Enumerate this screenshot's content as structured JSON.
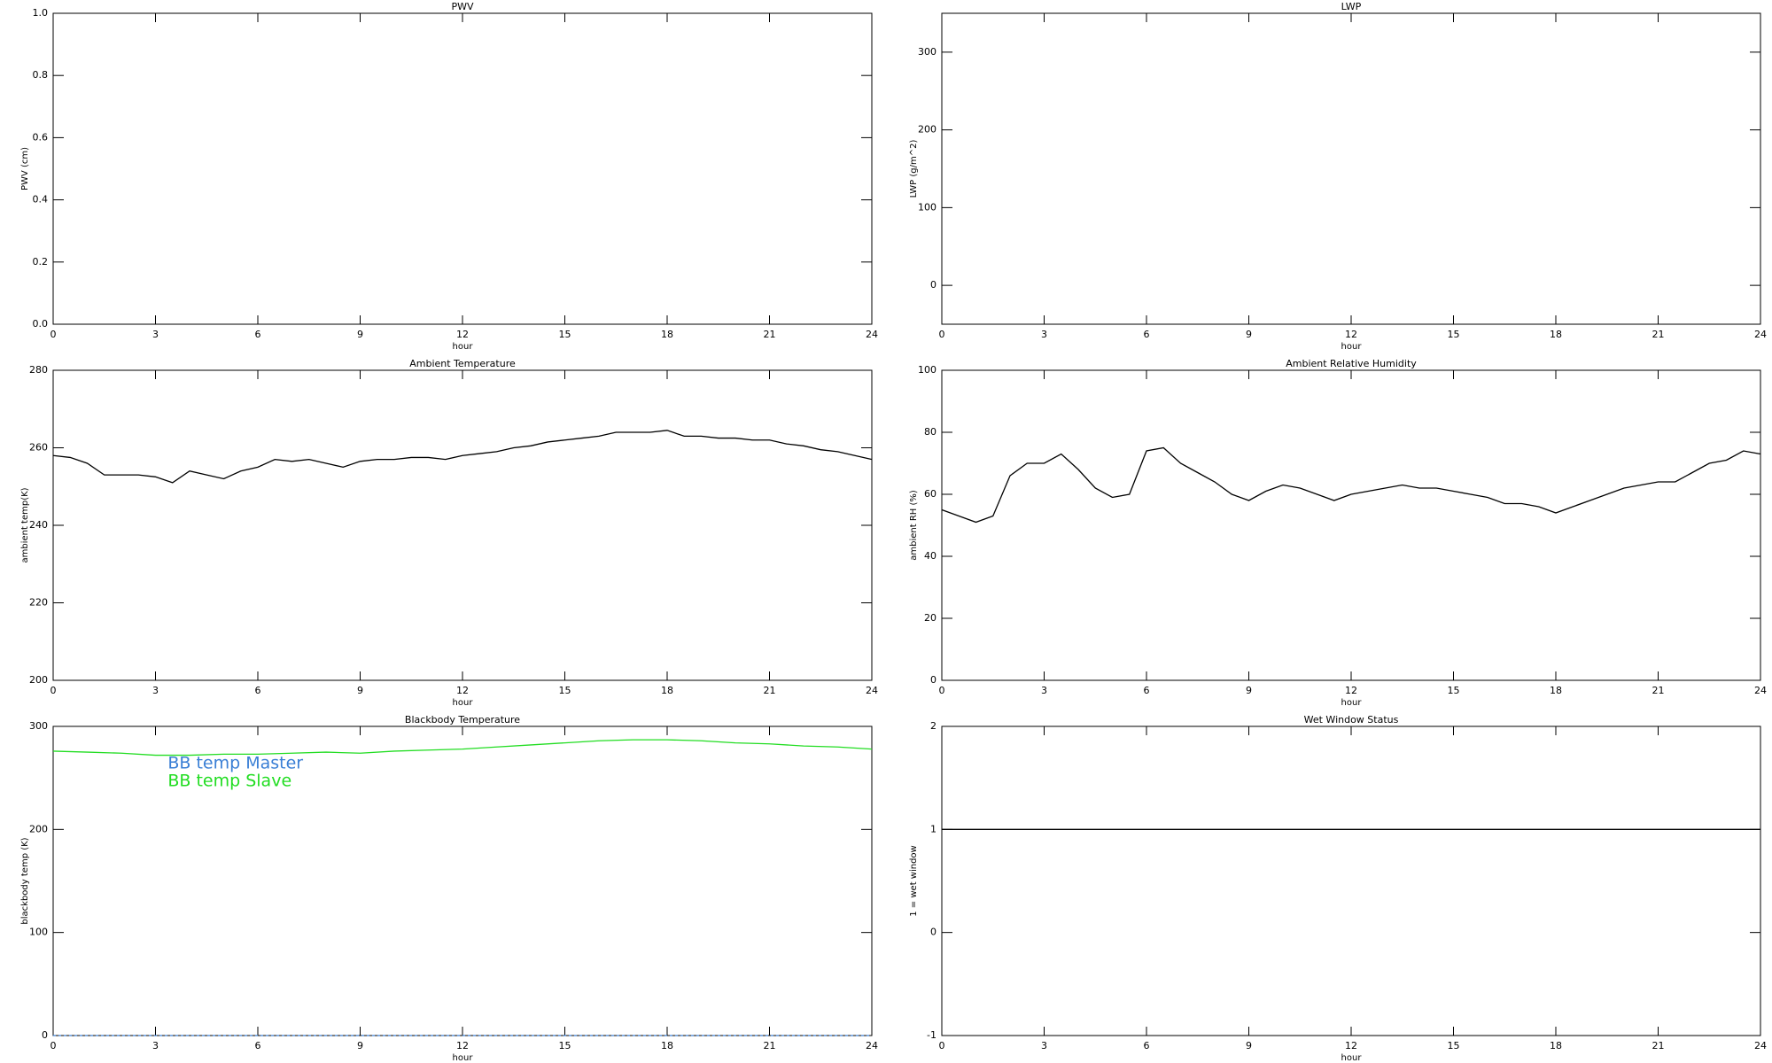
{
  "chart_data": [
    {
      "type": "line",
      "title": "PWV",
      "xlabel": "hour",
      "ylabel": "PWV (cm)",
      "xlim": [
        0,
        24
      ],
      "xticks": [
        0,
        3,
        6,
        9,
        12,
        15,
        18,
        21,
        24
      ],
      "ylim": [
        0,
        1
      ],
      "yticks": [
        {
          "value": 0,
          "label": "0.0"
        },
        0.2,
        0.4,
        0.6,
        0.8,
        {
          "value": 1,
          "label": "1.0"
        }
      ],
      "x": [],
      "series": []
    },
    {
      "type": "line",
      "title": "LWP",
      "xlabel": "hour",
      "ylabel": "LWP (g/m^2)",
      "xlim": [
        0,
        24
      ],
      "xticks": [
        0,
        3,
        6,
        9,
        12,
        15,
        18,
        21,
        24
      ],
      "ylim": [
        -50,
        350
      ],
      "yticks": [
        0,
        100,
        200,
        300
      ],
      "x": [],
      "series": []
    },
    {
      "type": "line",
      "title": "Ambient Temperature",
      "xlabel": "hour",
      "ylabel": "ambient temp(K)",
      "xlim": [
        0,
        24
      ],
      "xticks": [
        0,
        3,
        6,
        9,
        12,
        15,
        18,
        21,
        24
      ],
      "ylim": [
        200,
        280
      ],
      "yticks": [
        200,
        220,
        240,
        260,
        280
      ],
      "x": [
        0,
        0.5,
        1,
        1.5,
        2,
        2.5,
        3,
        3.5,
        4,
        4.5,
        5,
        5.5,
        6,
        6.5,
        7,
        7.5,
        8,
        8.5,
        9,
        9.5,
        10,
        10.5,
        11,
        11.5,
        12,
        12.5,
        13,
        13.5,
        14,
        14.5,
        15,
        15.5,
        16,
        16.5,
        17,
        17.5,
        18,
        18.5,
        19,
        19.5,
        20,
        20.5,
        21,
        21.5,
        22,
        22.5,
        23,
        23.5,
        24
      ],
      "series": [
        {
          "color": "#000000",
          "values": [
            258,
            257.5,
            256,
            253,
            253,
            253,
            252.5,
            251,
            254,
            253,
            252,
            254,
            255,
            257,
            256.5,
            257,
            256,
            255,
            256.5,
            257,
            257,
            257.5,
            257.5,
            257,
            258,
            258.5,
            259,
            260,
            260.5,
            261.5,
            262,
            262.5,
            263,
            264,
            264,
            264,
            264.5,
            263,
            263,
            262.5,
            262.5,
            262,
            262,
            261,
            260.5,
            259.5,
            259,
            258,
            257
          ]
        }
      ]
    },
    {
      "type": "line",
      "title": "Ambient Relative Humidity",
      "xlabel": "hour",
      "ylabel": "ambient RH (%)",
      "xlim": [
        0,
        24
      ],
      "xticks": [
        0,
        3,
        6,
        9,
        12,
        15,
        18,
        21,
        24
      ],
      "ylim": [
        0,
        100
      ],
      "yticks": [
        0,
        20,
        40,
        60,
        80,
        100
      ],
      "x": [
        0,
        0.5,
        1,
        1.5,
        2,
        2.5,
        3,
        3.5,
        4,
        4.5,
        5,
        5.5,
        6,
        6.5,
        7,
        7.5,
        8,
        8.5,
        9,
        9.5,
        10,
        10.5,
        11,
        11.5,
        12,
        12.5,
        13,
        13.5,
        14,
        14.5,
        15,
        15.5,
        16,
        16.5,
        17,
        17.5,
        18,
        18.5,
        19,
        19.5,
        20,
        20.5,
        21,
        21.5,
        22,
        22.5,
        23,
        23.5,
        24
      ],
      "series": [
        {
          "color": "#000000",
          "values": [
            55,
            53,
            51,
            53,
            66,
            70,
            70,
            73,
            68,
            62,
            59,
            60,
            74,
            75,
            70,
            67,
            64,
            60,
            58,
            61,
            63,
            62,
            60,
            58,
            60,
            61,
            62,
            63,
            62,
            62,
            61,
            60,
            59,
            57,
            57,
            56,
            54,
            56,
            58,
            60,
            62,
            63,
            64,
            64,
            67,
            70,
            71,
            74,
            73
          ]
        }
      ]
    },
    {
      "type": "line",
      "title": "Blackbody Temperature",
      "xlabel": "hour",
      "ylabel": "blackbody temp (K)",
      "xlim": [
        0,
        24
      ],
      "xticks": [
        0,
        3,
        6,
        9,
        12,
        15,
        18,
        21,
        24
      ],
      "ylim": [
        0,
        300
      ],
      "yticks": [
        0,
        100,
        200,
        300
      ],
      "legend": "upper left",
      "x": [
        0,
        1,
        2,
        3,
        4,
        5,
        6,
        7,
        8,
        9,
        10,
        11,
        12,
        13,
        14,
        15,
        16,
        17,
        18,
        19,
        20,
        21,
        22,
        23,
        24
      ],
      "series": [
        {
          "name": "BB temp Master",
          "color": "#3a7fd5",
          "values": [
            0,
            0,
            0,
            0,
            0,
            0,
            0,
            0,
            0,
            0,
            0,
            0,
            0,
            0,
            0,
            0,
            0,
            0,
            0,
            0,
            0,
            0,
            0,
            0,
            0
          ]
        },
        {
          "name": "BB temp Slave",
          "color": "#22dd22",
          "values": [
            276,
            275,
            274,
            272,
            272,
            273,
            273,
            274,
            275,
            274,
            276,
            277,
            278,
            280,
            282,
            284,
            286,
            287,
            287,
            286,
            284,
            283,
            281,
            280,
            278
          ]
        }
      ]
    },
    {
      "type": "line",
      "title": "Wet Window Status",
      "xlabel": "hour",
      "ylabel": "1 = wet window",
      "xlim": [
        0,
        24
      ],
      "xticks": [
        0,
        3,
        6,
        9,
        12,
        15,
        18,
        21,
        24
      ],
      "ylim": [
        -1,
        2
      ],
      "yticks": [
        -1,
        0,
        1,
        2
      ],
      "x": [
        0,
        24
      ],
      "series": [
        {
          "color": "#000000",
          "values": [
            1,
            1
          ]
        }
      ]
    }
  ]
}
